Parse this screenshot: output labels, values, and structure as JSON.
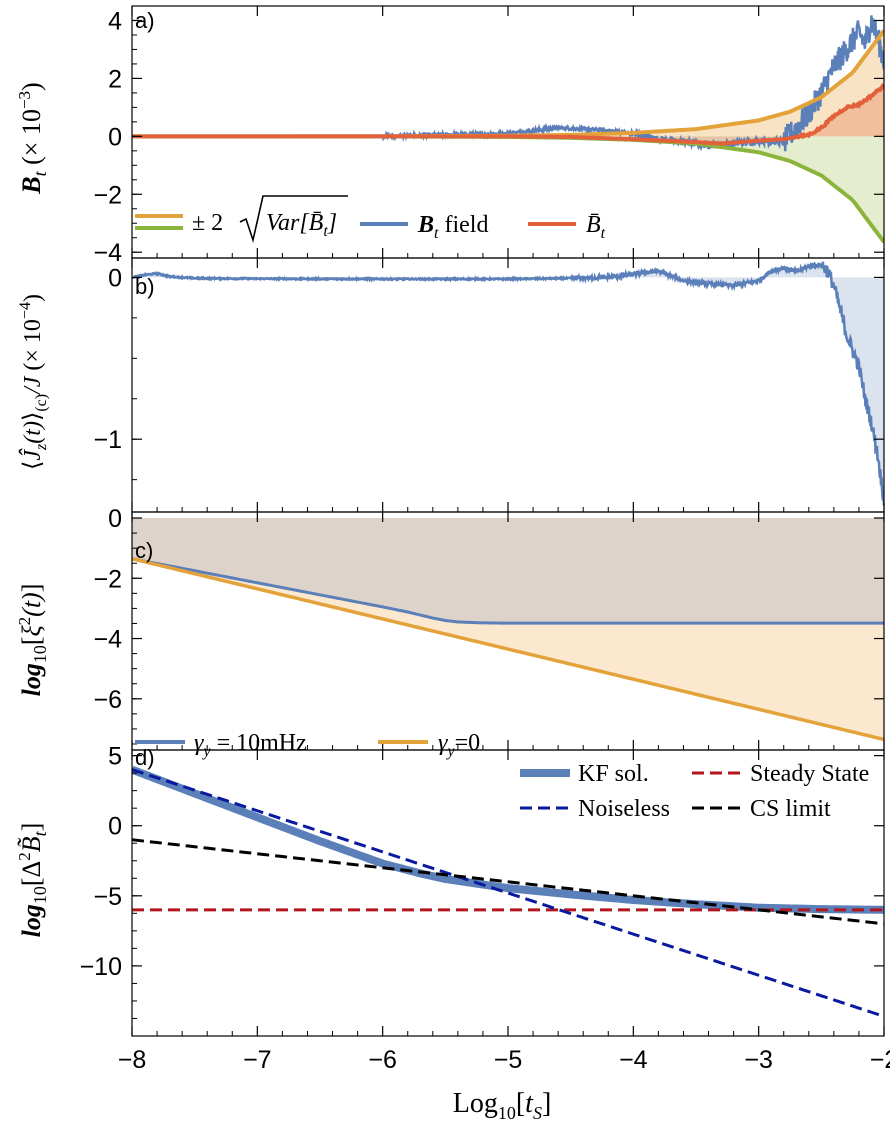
{
  "colors": {
    "blue": "#5b7fb8",
    "orange": "#e4a23a",
    "green": "#8cb43c",
    "red": "#e2603a",
    "darkred": "#b0161c",
    "navy": "#0a1aa0",
    "black": "#000000"
  },
  "x_axis": {
    "label": "Log₁₀[t_S]",
    "ticks": [
      -8,
      -7,
      -6,
      -5,
      -4,
      -3,
      -2
    ]
  },
  "chart_data": [
    {
      "panel": "a)",
      "type": "line",
      "ylabel": "B_t (×10⁻³)",
      "xlim": [
        -8,
        -2
      ],
      "ylim": [
        -4.2,
        4.5
      ],
      "yticks": [
        -4,
        -2,
        0,
        2,
        4
      ],
      "series": [
        {
          "name": "±2√Var[B̄_t]",
          "color": "#e4a23a",
          "x": [
            -8,
            -7,
            -6,
            -5,
            -4.5,
            -4,
            -3.5,
            -3,
            -2.75,
            -2.5,
            -2.25,
            -2
          ],
          "y": [
            0,
            0.0001,
            0.003,
            0.02,
            0.05,
            0.12,
            0.25,
            0.55,
            0.85,
            1.35,
            2.2,
            3.65
          ]
        },
        {
          "name": "-2√Var[B̄_t]",
          "color": "#8cb43c",
          "x": [
            -8,
            -7,
            -6,
            -5,
            -4.5,
            -4,
            -3.5,
            -3,
            -2.75,
            -2.5,
            -2.25,
            -2
          ],
          "y": [
            0,
            -0.0001,
            -0.003,
            -0.02,
            -0.05,
            -0.12,
            -0.25,
            -0.55,
            -0.85,
            -1.35,
            -2.2,
            -3.65
          ]
        },
        {
          "name": "B_t field",
          "color": "#5b7fb8",
          "x": [
            -8,
            -6,
            -5.5,
            -5,
            -4.6,
            -4.4,
            -4.2,
            -4,
            -3.8,
            -3.6,
            -3.4,
            -3.2,
            -3,
            -2.8,
            -2.6,
            -2.5,
            -2.4,
            -2.3,
            -2.2,
            -2.15,
            -2.1,
            -2.05,
            -2
          ],
          "y": [
            0,
            0,
            0.05,
            0.1,
            0.3,
            0.25,
            0.2,
            0.1,
            -0.1,
            -0.2,
            -0.3,
            -0.25,
            -0.15,
            -0.2,
            0.8,
            1.5,
            2.4,
            3.0,
            3.6,
            3.2,
            4.0,
            3.4,
            2.6
          ]
        },
        {
          "name": "B̄_t",
          "color": "#e2603a",
          "x": [
            -8,
            -6,
            -5,
            -4.5,
            -4,
            -3.5,
            -3.3,
            -3,
            -2.8,
            -2.6,
            -2.5,
            -2.4,
            -2.3,
            -2.2,
            -2.1,
            -2
          ],
          "y": [
            0,
            0,
            0,
            -0.02,
            -0.1,
            -0.2,
            -0.25,
            -0.15,
            -0.1,
            0.05,
            0.3,
            0.7,
            1.0,
            1.1,
            1.4,
            1.75
          ]
        }
      ]
    },
    {
      "panel": "b)",
      "type": "line",
      "ylabel": "⟨Ĵ_z(t)⟩_(c)/J (×10⁻⁴)",
      "xlim": [
        -8,
        -2
      ],
      "ylim": [
        -1.45,
        0.12
      ],
      "yticks": [
        -1,
        0
      ],
      "series": [
        {
          "name": "⟨Ĵ_z(t)⟩_(c)/J",
          "color": "#5b7fb8",
          "x": [
            -8,
            -7.9,
            -7.8,
            -7.7,
            -7.5,
            -7,
            -6,
            -5,
            -4.5,
            -4.2,
            -4,
            -3.8,
            -3.6,
            -3.4,
            -3.2,
            -3,
            -2.9,
            -2.8,
            -2.7,
            -2.6,
            -2.5,
            -2.45,
            -2.4,
            -2.35,
            -2.3,
            -2.25,
            -2.2,
            -2.15,
            -2.1,
            -2.05,
            -2
          ],
          "y": [
            0,
            0.015,
            0.025,
            0.005,
            -0.005,
            -0.008,
            -0.01,
            -0.01,
            -0.005,
            0.0,
            0.02,
            0.04,
            -0.02,
            -0.04,
            -0.05,
            -0.02,
            0.04,
            0.06,
            0.035,
            0.07,
            0.08,
            0.04,
            -0.05,
            -0.2,
            -0.35,
            -0.45,
            -0.55,
            -0.75,
            -0.9,
            -1.1,
            -1.38
          ]
        }
      ]
    },
    {
      "panel": "c)",
      "type": "line",
      "ylabel": "log₁₀[ξ²(t)]",
      "xlim": [
        -8,
        -2
      ],
      "ylim": [
        -7.7,
        0.2
      ],
      "yticks": [
        -6,
        -4,
        -2,
        0
      ],
      "series": [
        {
          "name": "γ_y = 10mHz",
          "color": "#5b7fb8",
          "x": [
            -8,
            -6,
            -5.8,
            -5.7,
            -5.6,
            -5.5,
            -5.4,
            -5.2,
            -5,
            -2
          ],
          "y": [
            -1.35,
            -2.95,
            -3.12,
            -3.22,
            -3.32,
            -3.4,
            -3.45,
            -3.48,
            -3.49,
            -3.49
          ]
        },
        {
          "name": "γ_y=0",
          "color": "#e4a23a",
          "x": [
            -8,
            -2
          ],
          "y": [
            -1.35,
            -7.35
          ]
        }
      ]
    },
    {
      "panel": "d)",
      "type": "line",
      "ylabel": "log₁₀[Δ²B̃_t]",
      "xlim": [
        -8,
        -2
      ],
      "ylim": [
        -15,
        5.4
      ],
      "yticks": [
        -10,
        -5,
        0,
        5
      ],
      "series": [
        {
          "name": "KF sol.",
          "color": "#5b7fb8",
          "x": [
            -8,
            -7.5,
            -7,
            -6.5,
            -6,
            -5.7,
            -5.5,
            -5.2,
            -5,
            -4.5,
            -4,
            -3.5,
            -3,
            -2.5,
            -2
          ],
          "y": [
            4.0,
            2.3,
            0.6,
            -1.1,
            -2.7,
            -3.4,
            -3.8,
            -4.2,
            -4.45,
            -4.9,
            -5.3,
            -5.6,
            -5.85,
            -5.95,
            -6.0
          ]
        },
        {
          "name": "Steady State",
          "color": "#b0161c",
          "x": [
            -8,
            -2
          ],
          "y": [
            -6.0,
            -6.0
          ]
        },
        {
          "name": "Noiseless",
          "color": "#0a1aa0",
          "x": [
            -8,
            -2
          ],
          "y": [
            4.0,
            -13.6
          ]
        },
        {
          "name": "CS limit",
          "color": "#000000",
          "x": [
            -8,
            -2
          ],
          "y": [
            -1.0,
            -7.0
          ]
        }
      ]
    }
  ],
  "legends": {
    "a": {
      "var_label": "± 2",
      "var_inner": "Var[B̄",
      "var_sub": "t",
      "field_label": "B",
      "field_sub": "t",
      "field_suffix": " field",
      "mean_label": "B̄",
      "mean_sub": "t"
    },
    "c": {
      "s1_label": "γ",
      "s1_sub": "y",
      "s1_suffix": " = 10mHz",
      "s2_label": "γ",
      "s2_sub": "y",
      "s2_suffix": "=0"
    },
    "d": {
      "kf": "KF sol.",
      "noiseless": "Noiseless",
      "steady": "Steady State",
      "cs": "CS limit"
    }
  }
}
